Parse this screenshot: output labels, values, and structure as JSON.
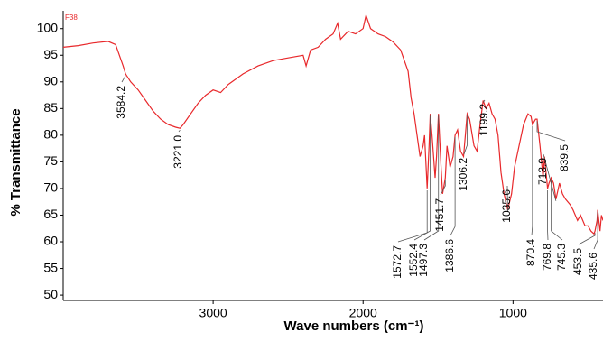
{
  "chart_data": {
    "type": "line",
    "title": "F38",
    "x_label": "Wave numbers (cm⁻¹)",
    "y_label": "% Transmittance",
    "xlim": [
      4000,
      400
    ],
    "ylim": [
      49,
      103
    ],
    "xticks": [
      3000,
      2000,
      1000
    ],
    "yticks": [
      50,
      55,
      60,
      65,
      70,
      75,
      80,
      85,
      90,
      95,
      100
    ],
    "grid": false,
    "series": [
      {
        "color": "#e8282b",
        "x": [
          4000,
          3900,
          3800,
          3700,
          3650,
          3600,
          3584.2,
          3550,
          3500,
          3450,
          3400,
          3350,
          3300,
          3250,
          3221,
          3200,
          3150,
          3100,
          3050,
          3000,
          2950,
          2900,
          2800,
          2700,
          2600,
          2500,
          2400,
          2380,
          2350,
          2300,
          2250,
          2200,
          2170,
          2150,
          2100,
          2050,
          2000,
          1980,
          1950,
          1900,
          1850,
          1800,
          1750,
          1700,
          1680,
          1660,
          1640,
          1620,
          1600,
          1590,
          1572.7,
          1560,
          1552.4,
          1540,
          1520,
          1510,
          1497.3,
          1480,
          1470,
          1451.7,
          1440,
          1420,
          1400,
          1386.6,
          1370,
          1350,
          1330,
          1306.2,
          1290,
          1260,
          1240,
          1220,
          1199.2,
          1180,
          1160,
          1140,
          1120,
          1100,
          1080,
          1060,
          1035.6,
          1010,
          990,
          960,
          930,
          900,
          880,
          870.4,
          850,
          839.5,
          820,
          800,
          790,
          769.8,
          760,
          745.3,
          730,
          713.9,
          690,
          670,
          650,
          620,
          600,
          570,
          550,
          520,
          500,
          480,
          460,
          453.5,
          440,
          435.6,
          420,
          410,
          400
        ],
        "values": [
          96.5,
          96.8,
          97.3,
          97.6,
          97,
          93,
          91.5,
          90,
          88.5,
          86.5,
          84.5,
          83,
          82,
          81.5,
          81.3,
          82,
          84,
          86,
          87.5,
          88.5,
          88,
          89.5,
          91.5,
          93,
          94,
          94.5,
          95,
          93,
          96,
          96.5,
          98,
          99,
          101,
          98,
          99.5,
          99,
          100,
          102.5,
          100,
          99,
          98.5,
          97.5,
          96,
          92,
          87,
          84,
          80,
          76,
          78,
          80,
          70,
          78,
          84,
          80,
          72,
          76,
          84,
          74,
          69,
          72,
          78,
          74,
          76,
          80,
          81,
          77,
          76,
          84,
          83,
          78,
          77,
          82,
          86.5,
          85,
          86,
          84,
          83,
          80,
          73,
          69,
          66,
          69,
          74,
          78,
          82,
          84,
          83.5,
          82,
          83,
          83,
          78,
          72,
          76,
          70,
          71,
          72,
          71,
          68,
          71,
          69,
          68,
          67,
          66,
          64,
          65,
          63,
          63,
          62,
          61.5,
          62,
          64,
          66,
          62,
          65,
          64
        ]
      }
    ],
    "annotations": [
      {
        "value": 3584.2,
        "label": "3584.2"
      },
      {
        "value": 3221.0,
        "label": "3221.0"
      },
      {
        "value": 1572.7,
        "label": "1572.7"
      },
      {
        "value": 1552.4,
        "label": "1552.4"
      },
      {
        "value": 1497.3,
        "label": "1497.3"
      },
      {
        "value": 1451.7,
        "label": "1451.7"
      },
      {
        "value": 1386.6,
        "label": "1386.6"
      },
      {
        "value": 1306.2,
        "label": "1306.2"
      },
      {
        "value": 1199.2,
        "label": "1199.2"
      },
      {
        "value": 1035.6,
        "label": "1035.6"
      },
      {
        "value": 870.4,
        "label": "870.4"
      },
      {
        "value": 769.8,
        "label": "769.8"
      },
      {
        "value": 745.3,
        "label": "745.3"
      },
      {
        "value": 713.9,
        "label": "713.9"
      },
      {
        "value": 839.5,
        "label": "839.5"
      },
      {
        "value": 453.5,
        "label": "453.5"
      },
      {
        "value": 435.6,
        "label": "435.6"
      }
    ]
  }
}
